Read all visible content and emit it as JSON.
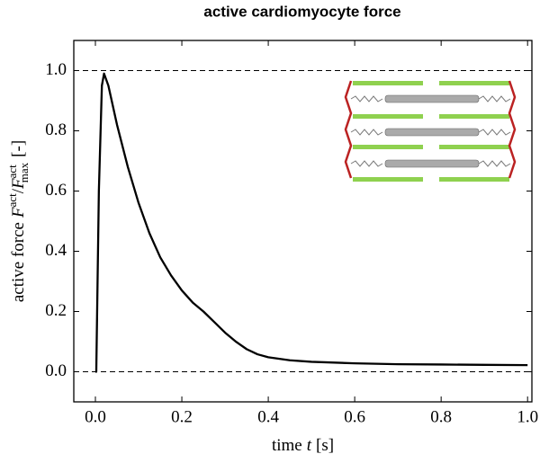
{
  "chart_data": {
    "type": "line",
    "title": "active cardiomyocyte force",
    "xlabel": [
      "time",
      "t",
      "[s]"
    ],
    "ylabel": [
      "active force",
      "F",
      "act",
      "/",
      "F",
      "act",
      "max",
      "[-]"
    ],
    "x": [
      0,
      0.002,
      0.008,
      0.015,
      0.02,
      0.03,
      0.05,
      0.075,
      0.1,
      0.125,
      0.15,
      0.175,
      0.2,
      0.225,
      0.25,
      0.275,
      0.3,
      0.325,
      0.35,
      0.375,
      0.4,
      0.45,
      0.5,
      0.6,
      0.7,
      0.8,
      0.9,
      1.0
    ],
    "series": [
      {
        "color": "#000000",
        "values": [
          0,
          0,
          0.6,
          0.95,
          0.99,
          0.95,
          0.82,
          0.68,
          0.56,
          0.46,
          0.38,
          0.32,
          0.27,
          0.23,
          0.2,
          0.165,
          0.13,
          0.1,
          0.075,
          0.058,
          0.048,
          0.038,
          0.033,
          0.028,
          0.025,
          0.024,
          0.023,
          0.022
        ]
      }
    ],
    "xlim": [
      -0.05,
      1.01
    ],
    "ylim": [
      -0.1,
      1.1
    ],
    "xticks": [
      {
        "value": 0,
        "label": "0.0"
      },
      {
        "value": 0.2,
        "label": "0.2"
      },
      {
        "value": 0.4,
        "label": "0.4"
      },
      {
        "value": 0.6,
        "label": "0.6"
      },
      {
        "value": 0.8,
        "label": "0.8"
      },
      {
        "value": 1.0,
        "label": "1.0"
      }
    ],
    "yticks": [
      {
        "value": 0,
        "label": "0.0"
      },
      {
        "value": 0.2,
        "label": "0.2"
      },
      {
        "value": 0.4,
        "label": "0.4"
      },
      {
        "value": 0.6,
        "label": "0.6"
      },
      {
        "value": 0.8,
        "label": "0.8"
      },
      {
        "value": 1.0,
        "label": "1.0"
      }
    ],
    "hlines": [
      0,
      1
    ],
    "grid": false
  }
}
